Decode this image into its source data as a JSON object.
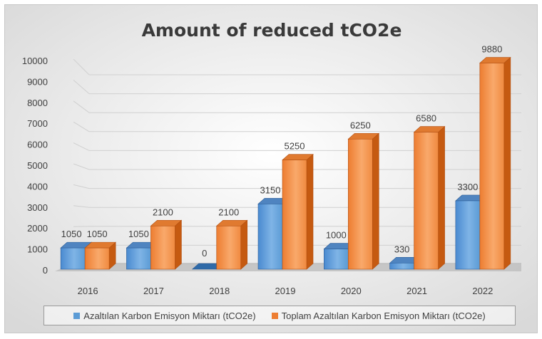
{
  "chart_data": {
    "type": "bar",
    "title": "Amount of reduced tCO2e",
    "categories": [
      "2016",
      "2017",
      "2018",
      "2019",
      "2020",
      "2021",
      "2022"
    ],
    "series": [
      {
        "name": "Azaltılan Karbon Emisyon Miktarı (tCO2e)",
        "values": [
          1050,
          1050,
          0,
          3150,
          1000,
          330,
          3300
        ],
        "color": "#5b9bd5"
      },
      {
        "name": "Toplam Azaltılan Karbon Emisyon Miktarı (tCO2e)",
        "values": [
          1050,
          2100,
          2100,
          5250,
          6250,
          6580,
          9880
        ],
        "color": "#ed7d31"
      }
    ],
    "yticks": [
      "0",
      "1000",
      "2000",
      "3000",
      "4000",
      "5000",
      "6000",
      "7000",
      "8000",
      "9000",
      "10000"
    ],
    "ylim": [
      0,
      10000
    ],
    "grid": true,
    "legend_position": "bottom"
  }
}
